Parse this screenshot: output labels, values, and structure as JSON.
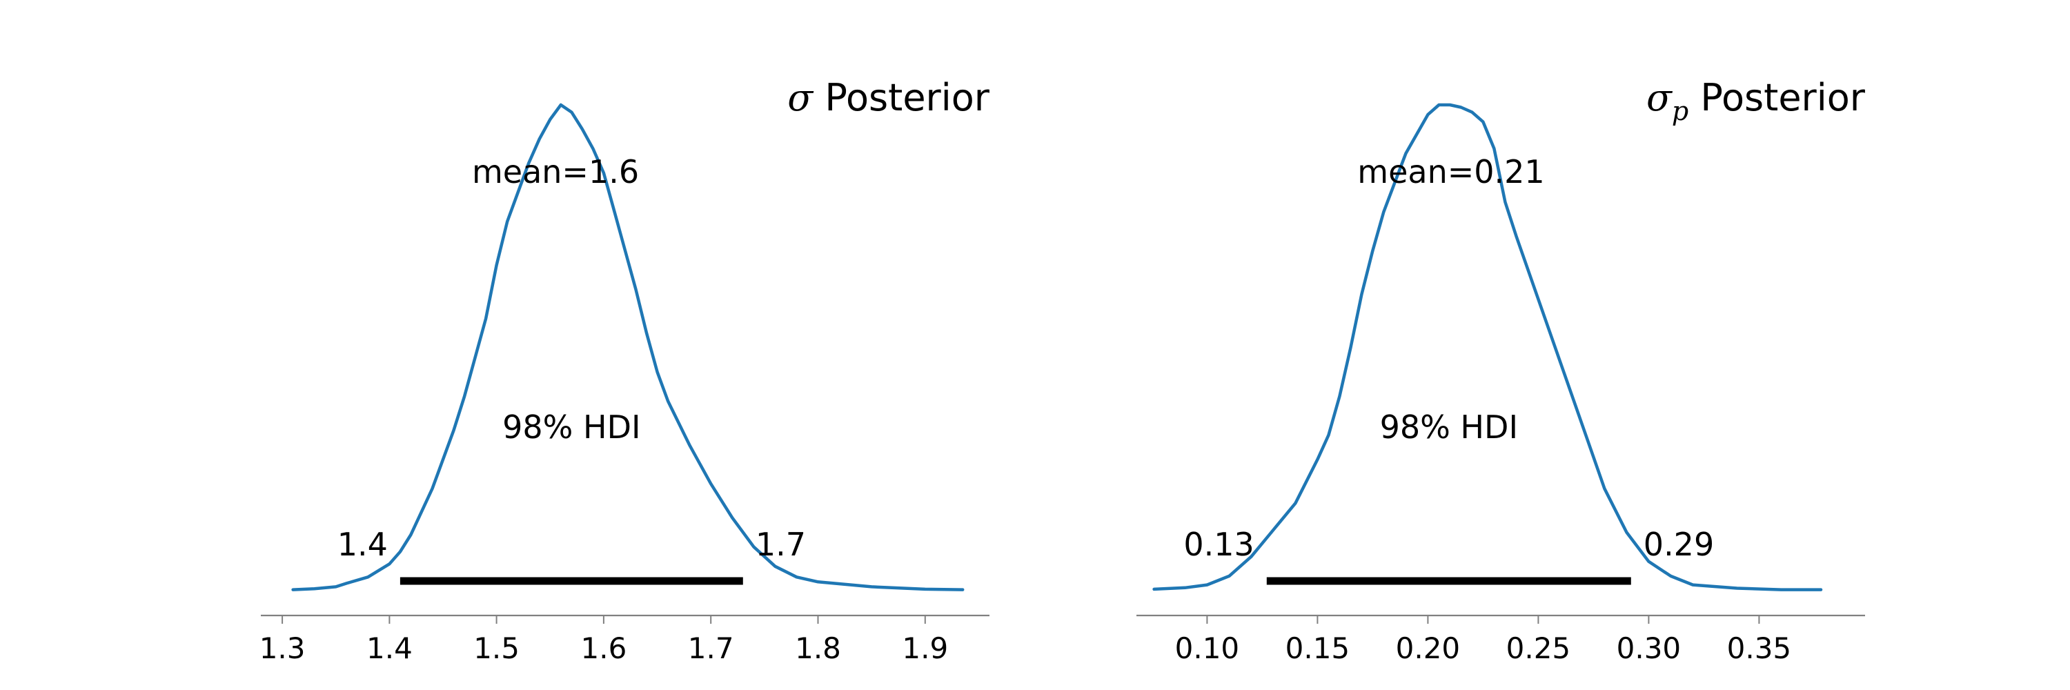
{
  "chart_data": [
    {
      "type": "line",
      "title": "σ Posterior",
      "title_symbol": "σ",
      "title_subscript": "",
      "title_rest": " Posterior",
      "xlim": [
        1.28,
        1.96
      ],
      "x_ticks": [
        1.3,
        1.4,
        1.5,
        1.6,
        1.7,
        1.8,
        1.9
      ],
      "x_tick_labels": [
        "1.3",
        "1.4",
        "1.5",
        "1.6",
        "1.7",
        "1.8",
        "1.9"
      ],
      "series": [
        {
          "color": "#1f77b4",
          "x": [
            1.31,
            1.33,
            1.35,
            1.36,
            1.38,
            1.4,
            1.41,
            1.42,
            1.44,
            1.46,
            1.47,
            1.48,
            1.49,
            1.5,
            1.51,
            1.52,
            1.53,
            1.54,
            1.55,
            1.56,
            1.57,
            1.58,
            1.59,
            1.6,
            1.61,
            1.62,
            1.63,
            1.64,
            1.65,
            1.66,
            1.68,
            1.7,
            1.72,
            1.74,
            1.76,
            1.78,
            1.8,
            1.85,
            1.9,
            1.935
          ],
          "y": [
            0.002,
            0.004,
            0.008,
            0.015,
            0.028,
            0.055,
            0.08,
            0.115,
            0.21,
            0.33,
            0.4,
            0.48,
            0.56,
            0.67,
            0.76,
            0.82,
            0.88,
            0.93,
            0.97,
            1.0,
            0.985,
            0.95,
            0.91,
            0.86,
            0.78,
            0.7,
            0.62,
            0.53,
            0.45,
            0.39,
            0.3,
            0.22,
            0.15,
            0.09,
            0.05,
            0.028,
            0.018,
            0.008,
            0.003,
            0.002
          ]
        }
      ],
      "mean_label": "mean=1.6",
      "mean_x": 1.555,
      "hdi_label": "98% HDI",
      "hdi": [
        1.41,
        1.73
      ],
      "hdi_low_label": "1.4",
      "hdi_high_label": "1.7"
    },
    {
      "type": "line",
      "title": "σp Posterior",
      "title_symbol": "σ",
      "title_subscript": "p",
      "title_rest": " Posterior",
      "xlim": [
        0.068,
        0.398
      ],
      "x_ticks": [
        0.1,
        0.15,
        0.2,
        0.25,
        0.3,
        0.35
      ],
      "x_tick_labels": [
        "0.10",
        "0.15",
        "0.20",
        "0.25",
        "0.30",
        "0.35"
      ],
      "series": [
        {
          "color": "#1f77b4",
          "x": [
            0.076,
            0.09,
            0.1,
            0.11,
            0.12,
            0.13,
            0.14,
            0.15,
            0.155,
            0.16,
            0.165,
            0.17,
            0.175,
            0.18,
            0.19,
            0.2,
            0.205,
            0.21,
            0.215,
            0.22,
            0.225,
            0.23,
            0.235,
            0.24,
            0.25,
            0.26,
            0.27,
            0.28,
            0.29,
            0.3,
            0.31,
            0.32,
            0.34,
            0.36,
            0.378
          ],
          "y": [
            0.003,
            0.006,
            0.012,
            0.03,
            0.07,
            0.125,
            0.18,
            0.27,
            0.32,
            0.4,
            0.5,
            0.61,
            0.7,
            0.78,
            0.9,
            0.98,
            1.0,
            1.0,
            0.995,
            0.985,
            0.965,
            0.91,
            0.8,
            0.73,
            0.6,
            0.47,
            0.34,
            0.21,
            0.12,
            0.06,
            0.03,
            0.012,
            0.005,
            0.002,
            0.002
          ]
        }
      ],
      "mean_label": "mean=0.21",
      "mean_x": 0.2105,
      "hdi_label": "98% HDI",
      "hdi": [
        0.127,
        0.292
      ],
      "hdi_low_label": "0.13",
      "hdi_high_label": "0.29"
    }
  ]
}
